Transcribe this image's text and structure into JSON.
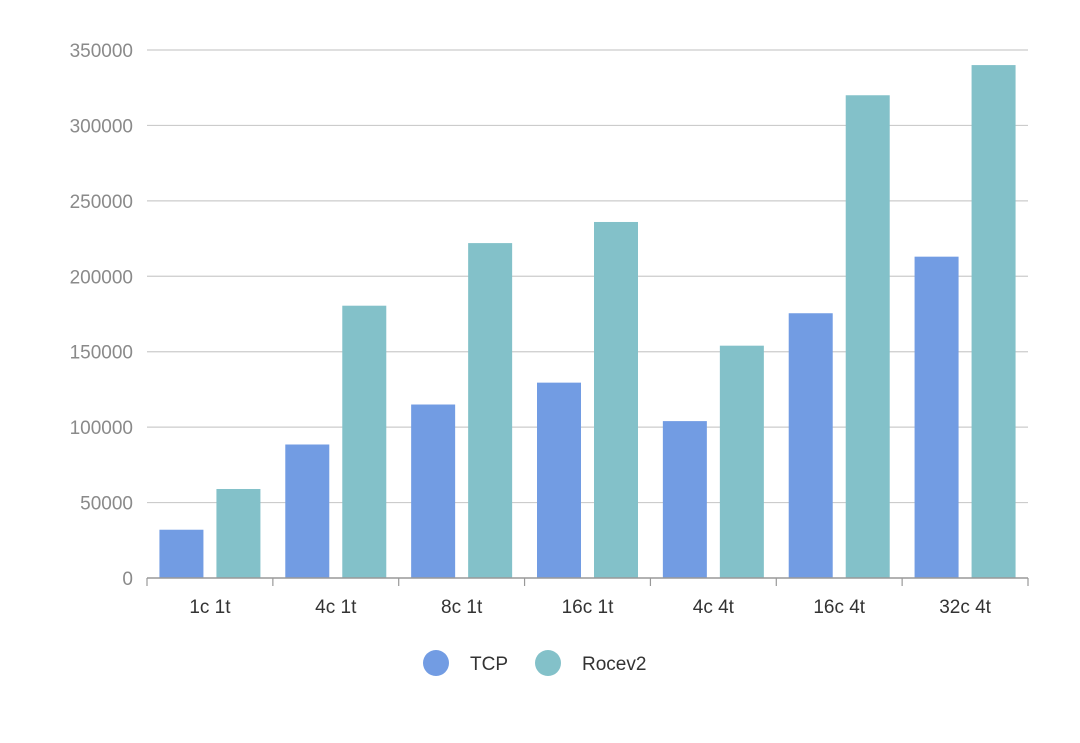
{
  "chart_data": {
    "type": "bar",
    "title": "",
    "xlabel": "",
    "ylabel": "",
    "categories": [
      "1c 1t",
      "4c 1t",
      "8c 1t",
      "16c 1t",
      "4c 4t",
      "16c 4t",
      "32c 4t"
    ],
    "series": [
      {
        "name": "TCP",
        "color": "#729ce3",
        "values": [
          32000,
          88500,
          115000,
          129500,
          104000,
          175500,
          213000
        ]
      },
      {
        "name": "Rocev2",
        "color": "#83c1c9",
        "values": [
          59000,
          180500,
          222000,
          236000,
          154000,
          320000,
          340000
        ]
      }
    ],
    "ylim": [
      0,
      350000
    ],
    "yticks": [
      "0",
      "50000",
      "100000",
      "150000",
      "200000",
      "250000",
      "300000",
      "350000"
    ],
    "grid": true,
    "legend_position": "bottom-center"
  },
  "colors": {
    "grid": "#cccccc",
    "axis": "#999999",
    "tick_text_y": "#8a8a8a",
    "tick_text_x": "#333333"
  }
}
